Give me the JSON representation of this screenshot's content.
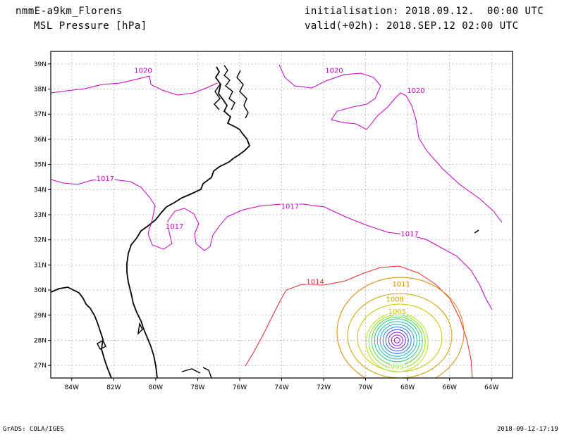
{
  "header": {
    "model": "nmmE-a9km_Florens",
    "variable": "MSL Pressure [hPa]",
    "init_line": "initialisation: 2018.09.12.  00:00 UTC",
    "valid_line": "valid(+02h): 2018.SEP.12 02:00 UTC"
  },
  "footer": {
    "left": "GrADS: COLA/IGES",
    "right": "2018-09-12-17:19"
  },
  "map": {
    "projection": "lat-lon",
    "grid": true,
    "lon_range": [
      -85,
      -63
    ],
    "lat_range": [
      26.5,
      39.5
    ],
    "lon_labels": [
      "84W",
      "82W",
      "80W",
      "78W",
      "76W",
      "74W",
      "72W",
      "70W",
      "68W",
      "66W",
      "64W"
    ],
    "lat_labels": [
      "39N",
      "38N",
      "37N",
      "36N",
      "35N",
      "34N",
      "33N",
      "32N",
      "31N",
      "30N",
      "29N",
      "28N",
      "27N"
    ],
    "contour_labels": [
      {
        "text": "1020",
        "color": "#c800c8",
        "lon": -80.6,
        "lat": 38.7
      },
      {
        "text": "1020",
        "color": "#c800c8",
        "lon": -71.5,
        "lat": 38.7
      },
      {
        "text": "1020",
        "color": "#c800c8",
        "lon": -67.6,
        "lat": 37.9
      },
      {
        "text": "1017",
        "color": "#c800c8",
        "lon": -82.4,
        "lat": 34.4
      },
      {
        "text": "1017",
        "color": "#c800c8",
        "lon": -73.6,
        "lat": 33.3
      },
      {
        "text": "1017",
        "color": "#c800c8",
        "lon": -79.1,
        "lat": 32.5
      },
      {
        "text": "1017",
        "color": "#c800c8",
        "lon": -67.9,
        "lat": 32.2
      },
      {
        "text": "1014",
        "color": "#e6282d",
        "lon": -72.4,
        "lat": 30.3
      },
      {
        "text": "1011",
        "color": "#e68200",
        "lon": -68.3,
        "lat": 30.2
      },
      {
        "text": "1008",
        "color": "#d2a000",
        "lon": -68.6,
        "lat": 29.6
      },
      {
        "text": "1005",
        "color": "#c8c800",
        "lon": -68.5,
        "lat": 29.1
      },
      {
        "text": "999",
        "color": "#a0e632",
        "lon": -68.5,
        "lat": 26.9
      }
    ],
    "storm_center": {
      "lon": -68.5,
      "lat": 28.0
    }
  }
}
